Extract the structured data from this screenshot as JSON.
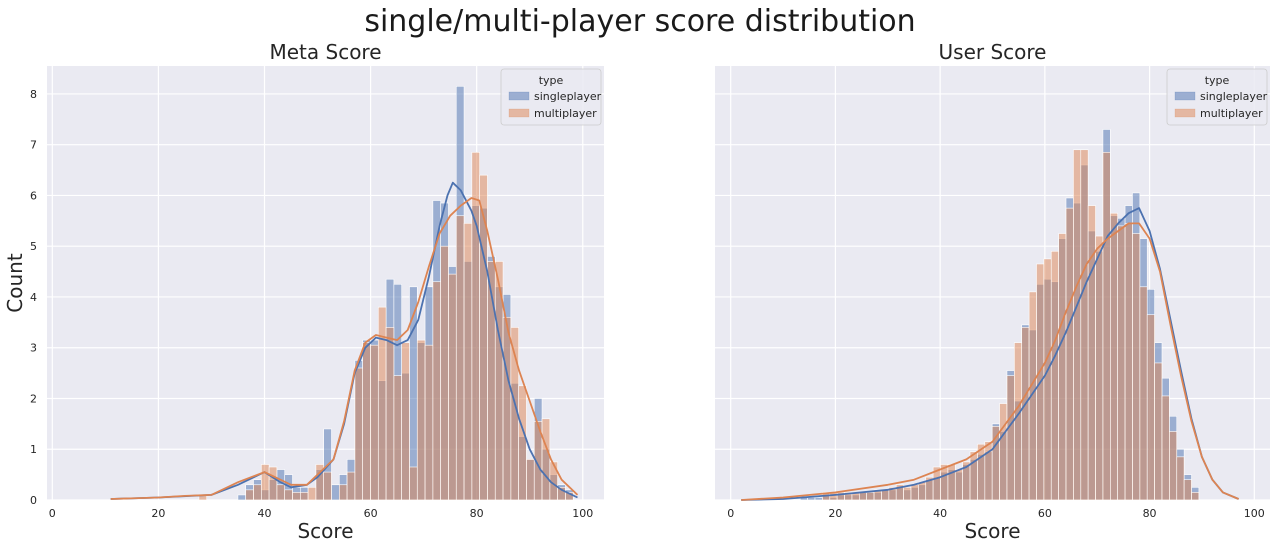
{
  "figure": {
    "suptitle": "single/multi-player score distribution",
    "ylabel": "Count",
    "background": "#eaeaf2",
    "grid_color": "#ffffff"
  },
  "chart_data": [
    {
      "type": "histogram",
      "title": "Meta Score",
      "xlabel": "Score",
      "ylabel": "Count",
      "xlim": [
        -1,
        104
      ],
      "ylim": [
        0,
        8.55
      ],
      "xticks": [
        0,
        20,
        40,
        60,
        80,
        100
      ],
      "yticks": [
        0,
        1,
        2,
        3,
        4,
        5,
        6,
        7,
        8
      ],
      "grid": true,
      "legend": {
        "title": "type",
        "position": "top-right"
      },
      "bin_start": 10,
      "bin_width": 1.47,
      "series": [
        {
          "name": "singleplayer",
          "color": "#4c72b0",
          "counts": [
            0,
            0,
            0,
            0,
            0,
            0,
            0,
            0,
            0,
            0,
            0,
            0,
            0,
            0,
            0,
            0,
            0,
            0.1,
            0.3,
            0.4,
            0.2,
            0.4,
            0.6,
            0.5,
            0.25,
            0.25,
            0,
            0.6,
            1.4,
            0.3,
            0.5,
            0.8,
            2.75,
            3.15,
            3.15,
            2.35,
            4.35,
            4.25,
            2.5,
            4.2,
            3.1,
            4.2,
            5.9,
            5.85,
            4.6,
            8.15,
            4.7,
            5.8,
            5.75,
            4.8,
            4.2,
            4.05,
            2.3,
            1.25,
            0.8,
            2.0,
            1.0,
            0.5,
            0.3,
            0.2
          ],
          "kde": [
            [
              11,
              0.02
            ],
            [
              20,
              0.05
            ],
            [
              30,
              0.1
            ],
            [
              35,
              0.3
            ],
            [
              40,
              0.55
            ],
            [
              43,
              0.35
            ],
            [
              45,
              0.25
            ],
            [
              48,
              0.3
            ],
            [
              50,
              0.45
            ],
            [
              53,
              0.8
            ],
            [
              55,
              1.5
            ],
            [
              57,
              2.5
            ],
            [
              59,
              3.0
            ],
            [
              61,
              3.2
            ],
            [
              63,
              3.15
            ],
            [
              65,
              3.05
            ],
            [
              67,
              3.15
            ],
            [
              69,
              3.55
            ],
            [
              71,
              4.4
            ],
            [
              73,
              5.4
            ],
            [
              74.5,
              6.0
            ],
            [
              75.5,
              6.25
            ],
            [
              77,
              6.1
            ],
            [
              79,
              5.7
            ],
            [
              80,
              5.4
            ],
            [
              82,
              4.5
            ],
            [
              84,
              3.35
            ],
            [
              86,
              2.35
            ],
            [
              88,
              1.6
            ],
            [
              90,
              1.0
            ],
            [
              92,
              0.6
            ],
            [
              94,
              0.35
            ],
            [
              96,
              0.2
            ],
            [
              99,
              0.05
            ]
          ]
        },
        {
          "name": "multiplayer",
          "color": "#dd8452",
          "counts": [
            0,
            0,
            0,
            0,
            0,
            0,
            0,
            0,
            0,
            0,
            0,
            0,
            0.1,
            0,
            0,
            0,
            0,
            0,
            0.2,
            0.3,
            0.7,
            0.65,
            0.3,
            0.2,
            0.15,
            0.15,
            0.25,
            0.7,
            0.55,
            0,
            0.3,
            0.55,
            2.6,
            3.1,
            3.05,
            3.8,
            3.4,
            2.45,
            3.1,
            0.65,
            3.15,
            3.05,
            4.3,
            5.0,
            4.45,
            5.6,
            5.45,
            6.85,
            6.4,
            4.7,
            4.7,
            3.6,
            3.4,
            2.25,
            0.8,
            1.55,
            1.6,
            0.75,
            0.25,
            0.15
          ],
          "kde": [
            [
              11,
              0.02
            ],
            [
              20,
              0.05
            ],
            [
              25,
              0.08
            ],
            [
              30,
              0.1
            ],
            [
              35,
              0.35
            ],
            [
              40,
              0.55
            ],
            [
              43,
              0.4
            ],
            [
              45,
              0.3
            ],
            [
              48,
              0.3
            ],
            [
              50,
              0.5
            ],
            [
              53,
              0.8
            ],
            [
              55,
              1.55
            ],
            [
              57,
              2.55
            ],
            [
              59,
              3.1
            ],
            [
              61,
              3.25
            ],
            [
              63,
              3.2
            ],
            [
              65,
              3.15
            ],
            [
              67,
              3.35
            ],
            [
              69,
              3.9
            ],
            [
              71,
              4.6
            ],
            [
              73,
              5.25
            ],
            [
              75,
              5.6
            ],
            [
              77,
              5.8
            ],
            [
              79,
              5.95
            ],
            [
              80.5,
              5.9
            ],
            [
              82,
              5.3
            ],
            [
              84,
              4.35
            ],
            [
              86,
              3.3
            ],
            [
              88,
              2.55
            ],
            [
              90,
              1.95
            ],
            [
              92,
              1.35
            ],
            [
              94,
              0.8
            ],
            [
              96,
              0.4
            ],
            [
              99,
              0.1
            ]
          ]
        }
      ]
    },
    {
      "type": "histogram",
      "title": "User Score",
      "xlabel": "Score",
      "ylabel": "Count",
      "xlim": [
        -3,
        103
      ],
      "ylim": [
        0,
        8.55
      ],
      "xticks": [
        0,
        20,
        40,
        60,
        80,
        100
      ],
      "yticks": [
        0,
        1,
        2,
        3,
        4,
        5,
        6,
        7,
        8
      ],
      "grid": true,
      "legend": {
        "title": "type",
        "position": "top-right"
      },
      "bin_start": 2,
      "bin_width": 1.41,
      "series": [
        {
          "name": "singleplayer",
          "color": "#4c72b0",
          "counts": [
            0,
            0,
            0,
            0,
            0,
            0,
            0,
            0,
            0.05,
            0.05,
            0.05,
            0.1,
            0.05,
            0.1,
            0.1,
            0.1,
            0.15,
            0.15,
            0.15,
            0.2,
            0.2,
            0.25,
            0.2,
            0.25,
            0.3,
            0.4,
            0.45,
            0.55,
            0.6,
            0.55,
            0.7,
            0.8,
            0.9,
            0.95,
            1.5,
            1.35,
            2.55,
            1.95,
            3.45,
            3.35,
            4.25,
            4.35,
            4.3,
            5.15,
            5.95,
            5.85,
            6.6,
            5.3,
            4.9,
            7.3,
            5.6,
            5.55,
            5.8,
            6.05,
            5.15,
            4.15,
            3.1,
            2.4,
            1.65,
            1.0,
            0.5,
            0.25
          ],
          "kde": [
            [
              2,
              0.0
            ],
            [
              10,
              0.02
            ],
            [
              20,
              0.1
            ],
            [
              30,
              0.2
            ],
            [
              35,
              0.3
            ],
            [
              40,
              0.45
            ],
            [
              45,
              0.65
            ],
            [
              50,
              1.0
            ],
            [
              55,
              1.7
            ],
            [
              60,
              2.45
            ],
            [
              62,
              2.85
            ],
            [
              64,
              3.3
            ],
            [
              66,
              3.8
            ],
            [
              68,
              4.3
            ],
            [
              70,
              4.75
            ],
            [
              72,
              5.2
            ],
            [
              74,
              5.45
            ],
            [
              76,
              5.65
            ],
            [
              78,
              5.75
            ],
            [
              80,
              5.3
            ],
            [
              82,
              4.55
            ],
            [
              84,
              3.55
            ],
            [
              86,
              2.55
            ],
            [
              88,
              1.6
            ],
            [
              90,
              0.85
            ],
            [
              92,
              0.4
            ],
            [
              94,
              0.15
            ],
            [
              97,
              0.02
            ]
          ]
        },
        {
          "name": "multiplayer",
          "color": "#dd8452",
          "counts": [
            0,
            0,
            0,
            0,
            0,
            0,
            0,
            0,
            0,
            0,
            0,
            0.15,
            0.15,
            0.15,
            0.15,
            0.15,
            0.15,
            0.15,
            0.2,
            0.2,
            0.25,
            0.3,
            0.25,
            0.3,
            0.35,
            0.45,
            0.65,
            0.7,
            0.7,
            0.6,
            0.75,
            0.95,
            1.1,
            1.15,
            1.45,
            1.9,
            2.45,
            3.1,
            3.4,
            4.1,
            4.65,
            4.75,
            4.9,
            5.25,
            5.75,
            6.9,
            6.9,
            5.8,
            5.2,
            6.85,
            5.65,
            5.4,
            5.45,
            5.25,
            4.2,
            3.65,
            2.7,
            2.05,
            1.35,
            0.85,
            0.4,
            0.15
          ],
          "kde": [
            [
              2,
              0.0
            ],
            [
              10,
              0.05
            ],
            [
              20,
              0.15
            ],
            [
              30,
              0.3
            ],
            [
              35,
              0.4
            ],
            [
              40,
              0.6
            ],
            [
              45,
              0.8
            ],
            [
              50,
              1.15
            ],
            [
              55,
              1.85
            ],
            [
              60,
              2.7
            ],
            [
              62,
              3.15
            ],
            [
              64,
              3.7
            ],
            [
              66,
              4.2
            ],
            [
              68,
              4.65
            ],
            [
              70,
              4.95
            ],
            [
              72,
              5.15
            ],
            [
              74,
              5.3
            ],
            [
              76,
              5.45
            ],
            [
              78,
              5.45
            ],
            [
              80,
              5.15
            ],
            [
              82,
              4.5
            ],
            [
              84,
              3.45
            ],
            [
              86,
              2.45
            ],
            [
              88,
              1.55
            ],
            [
              90,
              0.85
            ],
            [
              92,
              0.4
            ],
            [
              94,
              0.15
            ],
            [
              97,
              0.02
            ]
          ]
        }
      ]
    }
  ]
}
